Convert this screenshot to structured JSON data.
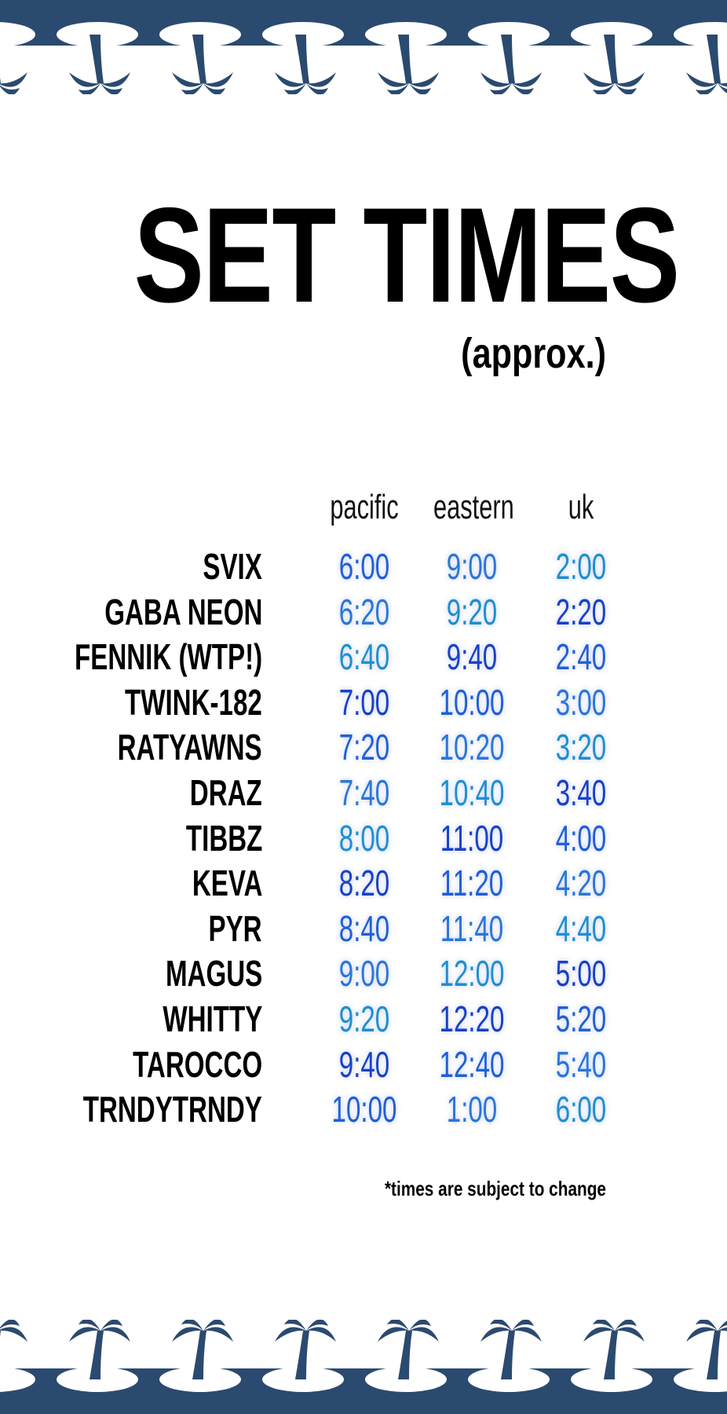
{
  "title": "SET TIMES",
  "subtitle": "(approx.)",
  "columns": [
    "pacific",
    "eastern",
    "uk"
  ],
  "rows": [
    {
      "artist": "SVIX",
      "pacific": "6:00",
      "eastern": "9:00",
      "uk": "2:00"
    },
    {
      "artist": "GABA NEON",
      "pacific": "6:20",
      "eastern": "9:20",
      "uk": "2:20"
    },
    {
      "artist": "FENNIK (WTP!)",
      "pacific": "6:40",
      "eastern": "9:40",
      "uk": "2:40"
    },
    {
      "artist": "TWINK-182",
      "pacific": "7:00",
      "eastern": "10:00",
      "uk": "3:00"
    },
    {
      "artist": "RATYAWNS",
      "pacific": "7:20",
      "eastern": "10:20",
      "uk": "3:20"
    },
    {
      "artist": "DRAZ",
      "pacific": "7:40",
      "eastern": "10:40",
      "uk": "3:40"
    },
    {
      "artist": "TIBBZ",
      "pacific": "8:00",
      "eastern": "11:00",
      "uk": "4:00"
    },
    {
      "artist": "KEVA",
      "pacific": "8:20",
      "eastern": "11:20",
      "uk": "4:20"
    },
    {
      "artist": "PYR",
      "pacific": "8:40",
      "eastern": "11:40",
      "uk": "4:40"
    },
    {
      "artist": "MAGUS",
      "pacific": "9:00",
      "eastern": "12:00",
      "uk": "5:00"
    },
    {
      "artist": "WHITTY",
      "pacific": "9:20",
      "eastern": "12:20",
      "uk": "5:20"
    },
    {
      "artist": "TAROCCO",
      "pacific": "9:40",
      "eastern": "12:40",
      "uk": "5:40"
    },
    {
      "artist": "TRNDYTRNDY",
      "pacific": "10:00",
      "eastern": "1:00",
      "uk": "6:00"
    }
  ],
  "footnote": "*times are subject to change",
  "colors": {
    "border_navy": "#2b4a6f",
    "time_blues": [
      "#1f5fd6",
      "#2a76d8",
      "#1e8fcf",
      "#1741c7"
    ]
  },
  "icons": [
    "palm-tree-island-icon",
    "anchor-icon"
  ]
}
